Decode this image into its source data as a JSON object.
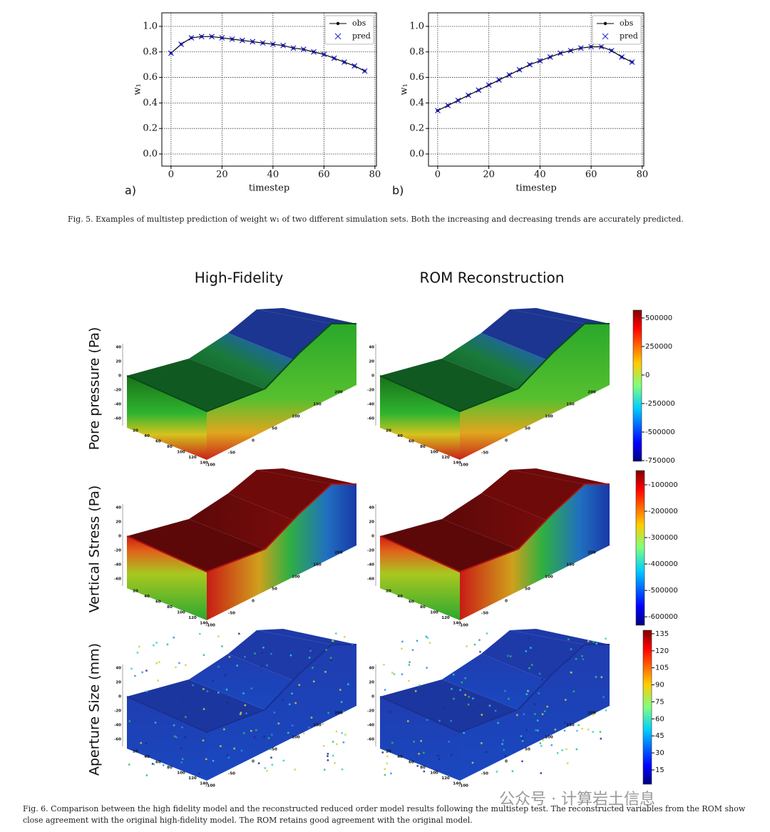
{
  "chart_data": [
    {
      "type": "line",
      "panel": "a)",
      "xlabel": "timestep",
      "ylabel": "w₁",
      "x": [
        0,
        4,
        8,
        12,
        16,
        20,
        24,
        28,
        32,
        36,
        40,
        44,
        48,
        52,
        56,
        60,
        64,
        68,
        72,
        76
      ],
      "series": [
        {
          "name": "obs",
          "color": "#000000",
          "marker": "o",
          "line": true,
          "values": [
            0.79,
            0.86,
            0.91,
            0.92,
            0.92,
            0.91,
            0.9,
            0.89,
            0.88,
            0.87,
            0.86,
            0.85,
            0.83,
            0.82,
            0.8,
            0.78,
            0.75,
            0.72,
            0.69,
            0.65
          ]
        },
        {
          "name": "pred",
          "color": "#1f1fd6",
          "marker": "x",
          "line": false,
          "values": [
            0.79,
            0.86,
            0.91,
            0.92,
            0.92,
            0.91,
            0.9,
            0.89,
            0.88,
            0.87,
            0.86,
            0.85,
            0.83,
            0.82,
            0.8,
            0.78,
            0.75,
            0.72,
            0.69,
            0.65
          ]
        }
      ],
      "xlim": [
        -3.6,
        80.6
      ],
      "ylim": [
        -0.095,
        1.106
      ],
      "xticks": [
        0,
        20,
        40,
        60,
        80
      ],
      "yticks": [
        {
          "value": 0,
          "label": "0.0"
        },
        0.2,
        0.4,
        0.6,
        0.8,
        {
          "value": 1,
          "label": "1.0"
        }
      ],
      "grid": true,
      "legend": "upper right"
    },
    {
      "type": "line",
      "panel": "b)",
      "xlabel": "timestep",
      "ylabel": "w₁",
      "x": [
        0,
        4,
        8,
        12,
        16,
        20,
        24,
        28,
        32,
        36,
        40,
        44,
        48,
        52,
        56,
        60,
        64,
        68,
        72,
        76
      ],
      "series": [
        {
          "name": "obs",
          "color": "#000000",
          "marker": "o",
          "line": true,
          "values": [
            0.34,
            0.38,
            0.42,
            0.46,
            0.5,
            0.54,
            0.58,
            0.62,
            0.66,
            0.7,
            0.73,
            0.76,
            0.79,
            0.81,
            0.83,
            0.84,
            0.84,
            0.81,
            0.76,
            0.72
          ]
        },
        {
          "name": "pred",
          "color": "#1f1fd6",
          "marker": "x",
          "line": false,
          "values": [
            0.34,
            0.38,
            0.42,
            0.46,
            0.5,
            0.54,
            0.58,
            0.62,
            0.66,
            0.7,
            0.73,
            0.76,
            0.79,
            0.81,
            0.83,
            0.84,
            0.84,
            0.81,
            0.76,
            0.72
          ]
        }
      ],
      "xlim": [
        -3.6,
        80.6
      ],
      "ylim": [
        -0.095,
        1.106
      ],
      "xticks": [
        0,
        20,
        40,
        60,
        80
      ],
      "yticks": [
        {
          "value": 0,
          "label": "0.0"
        },
        0.2,
        0.4,
        0.6,
        0.8,
        {
          "value": 1,
          "label": "1.0"
        }
      ],
      "grid": true,
      "legend": "upper right"
    }
  ],
  "fig5": {
    "caption": "Fig. 5.  Examples of multistep prediction of weight w₁ of two different simulation sets. Both the increasing and decreasing trends are accurately predicted."
  },
  "fig6": {
    "columns": [
      "High-Fidelity",
      "ROM Reconstruction"
    ],
    "axis_labels": {
      "z": [
        "40",
        "20",
        "0",
        "-20",
        "-40",
        "-60"
      ],
      "x": [
        "20",
        "40",
        "60",
        "80",
        "100",
        "120",
        "140"
      ],
      "y": [
        "-100",
        "-50",
        "0",
        "50",
        "100",
        "150",
        "200"
      ]
    },
    "rows": [
      {
        "label": "Pore pressure (Pa)",
        "colorbar": {
          "lim": [
            -756250,
            568750
          ],
          "ticks": [
            500000,
            250000,
            0,
            -250000,
            -500000,
            -750000
          ]
        }
      },
      {
        "label": "Vertical Stress (Pa)",
        "colorbar": {
          "lim": [
            -632000,
            -46000
          ],
          "ticks": [
            -100000,
            -200000,
            -300000,
            -400000,
            -500000,
            -600000
          ]
        }
      },
      {
        "label": "Aperture Size (mm)",
        "colorbar": {
          "lim": [
            2.4,
            138.1
          ],
          "ticks": [
            135,
            120,
            105,
            90,
            75,
            60,
            45,
            30,
            15
          ]
        }
      }
    ],
    "caption": "Fig. 6.  Comparison between the high fidelity model and the reconstructed reduced order model results following the multistep test. The reconstructed variables from the ROM show close agreement with the original high-fidelity model. The ROM retains good agreement with the original model."
  },
  "watermark": "公众号 · 计算岩土信息"
}
